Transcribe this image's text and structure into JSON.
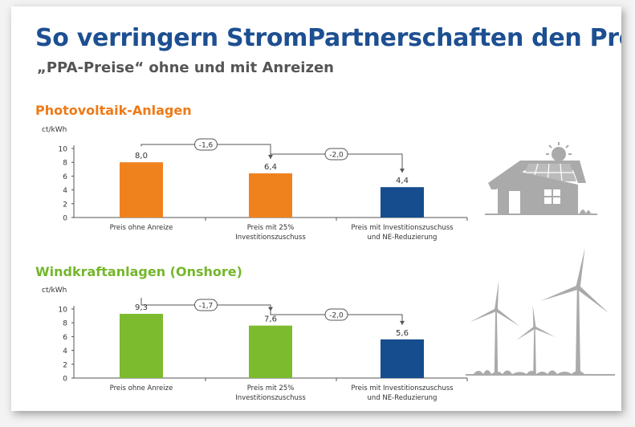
{
  "header": {
    "title": "So verringern StromPartnerschaften den Preis",
    "subtitle": "„PPA-Preise“ ohne und mit Anreizen"
  },
  "chart_data": [
    {
      "type": "bar",
      "title": "Photovoltaik-Anlagen",
      "ylabel": "ct/kWh",
      "ylim": [
        0,
        10
      ],
      "yticks": [
        "0",
        "2",
        "4",
        "6",
        "8",
        "10"
      ],
      "categories": [
        [
          "Preis ohne Anreize"
        ],
        [
          "Preis mit 25%",
          "Investitionszuschuss"
        ],
        [
          "Preis mit Investitionszuschuss",
          "und NE-Reduzierung"
        ]
      ],
      "values": [
        8.0,
        6.4,
        4.4
      ],
      "value_labels": [
        "8,0",
        "6,4",
        "4,4"
      ],
      "colors": [
        "#f0821e",
        "#f0821e",
        "#154d8e"
      ],
      "differences": [
        "-1,6",
        "-2,0"
      ],
      "title_color": "#ee7a17"
    },
    {
      "type": "bar",
      "title": "Windkraftanlagen (Onshore)",
      "ylabel": "ct/kWh",
      "ylim": [
        0,
        10
      ],
      "yticks": [
        "0",
        "2",
        "4",
        "6",
        "8",
        "10"
      ],
      "categories": [
        [
          "Preis ohne Anreize"
        ],
        [
          "Preis mit 25%",
          "Investitionszuschuss"
        ],
        [
          "Preis mit Investitionszuschuss",
          "und NE-Reduzierung"
        ]
      ],
      "values": [
        9.3,
        7.6,
        5.6
      ],
      "value_labels": [
        "9,3",
        "7,6",
        "5,6"
      ],
      "colors": [
        "#7dbb2e",
        "#7dbb2e",
        "#154d8e"
      ],
      "differences": [
        "-1,7",
        "-2,0"
      ],
      "title_color": "#74b72b"
    }
  ],
  "illustrations": {
    "house": "house-with-solar-panels-icon",
    "wind": "wind-turbines-icon",
    "color": "#aaaaaa"
  }
}
